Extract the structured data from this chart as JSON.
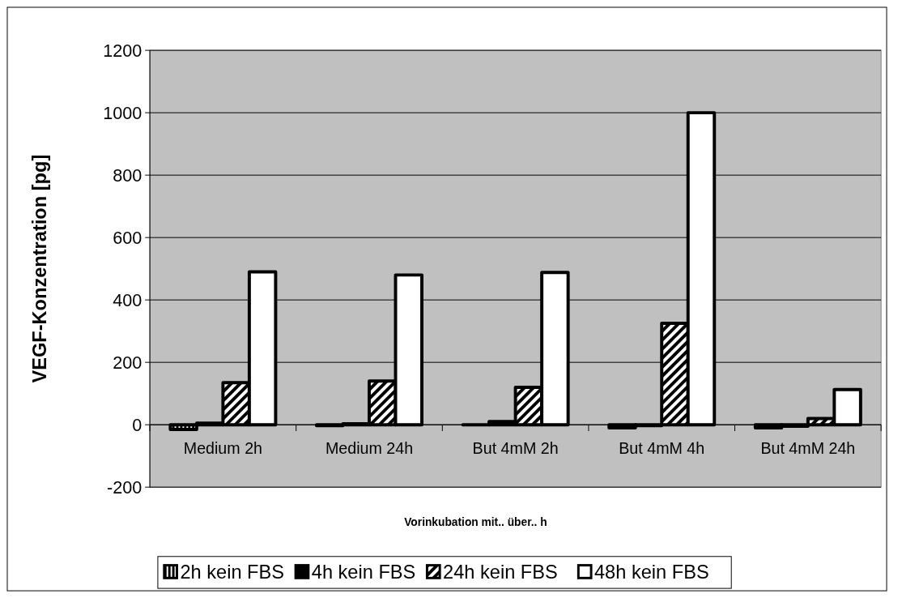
{
  "chart_data": {
    "type": "bar",
    "xlabel": "Vorinkubation mit.. über.. h",
    "ylabel": "VEGF-Konzentration [pg]",
    "categories": [
      "Medium 2h",
      "Medium 24h",
      "But 4mM 2h",
      "But 4mM 4h",
      "But 4mM 24h"
    ],
    "series": [
      {
        "name": "2h kein FBS",
        "color": "#000000",
        "values": [
          -15,
          -3,
          0,
          -10,
          -10
        ]
      },
      {
        "name": "4h kein FBS",
        "color": "#000000",
        "values": [
          5,
          3,
          10,
          -3,
          -5
        ]
      },
      {
        "name": "24h kein FBS",
        "color": "#000000",
        "values": [
          135,
          140,
          120,
          325,
          20
        ]
      },
      {
        "name": "48h kein FBS",
        "color": "#ffffff",
        "values": [
          490,
          480,
          488,
          1000,
          113
        ]
      }
    ],
    "ylim": [
      -200,
      1200
    ],
    "yticks": [
      -200,
      0,
      200,
      400,
      600,
      800,
      1000,
      1200
    ],
    "grid": "y",
    "legend": "bottom"
  }
}
